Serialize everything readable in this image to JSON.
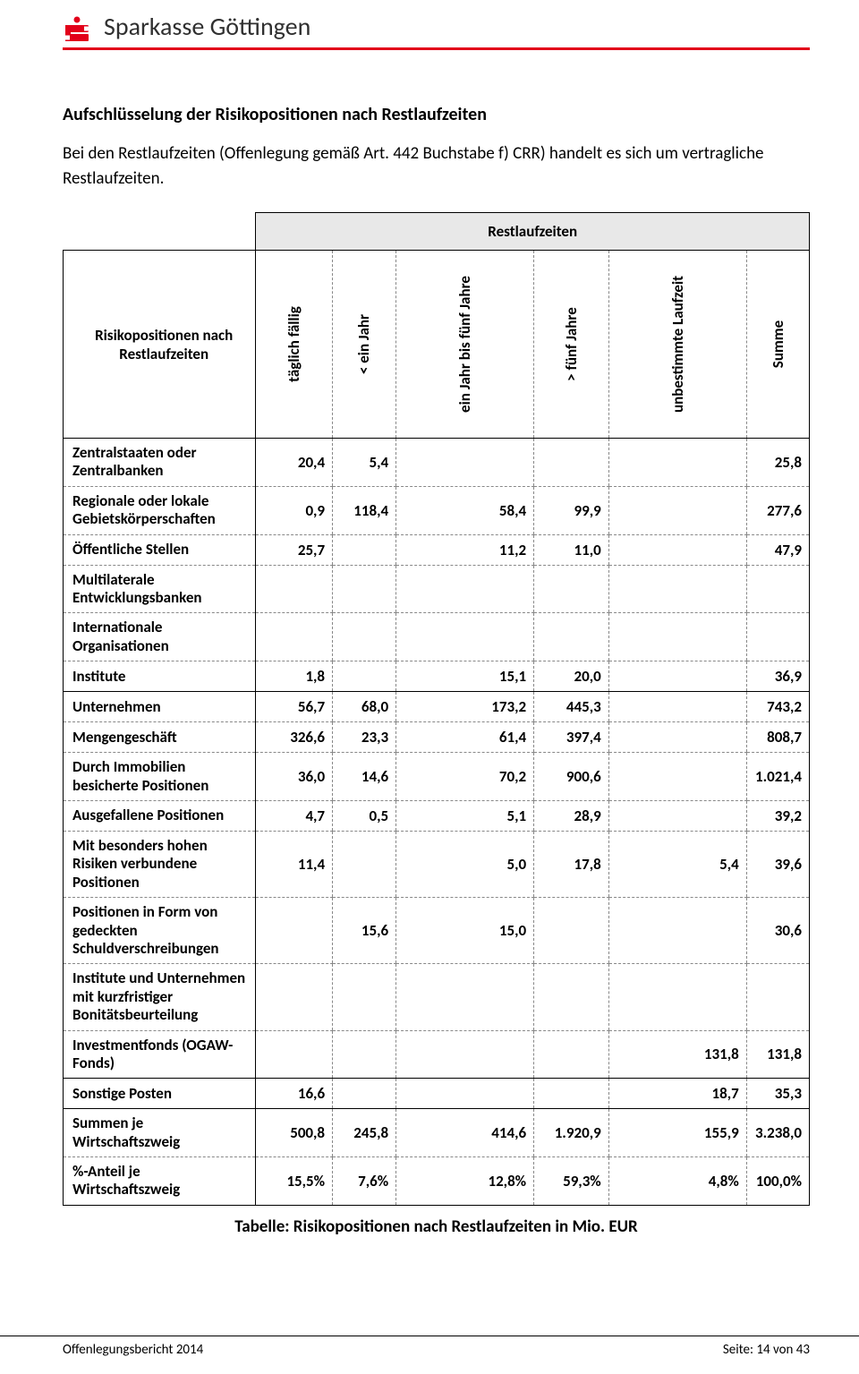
{
  "header": {
    "title": "Sparkasse Göttingen"
  },
  "section": {
    "title": "Aufschlüsselung der Risikopositionen nach Restlaufzeiten",
    "body": "Bei den Restlaufzeiten (Offenlegung gemäß Art. 442 Buchstabe f) CRR) handelt es sich um vertragliche Restlaufzeiten."
  },
  "table": {
    "restlaufzeiten_label": "Restlaufzeiten",
    "rowlabel": "Risikopositionen nach Restlaufzeiten",
    "columns": [
      "täglich fällig",
      "< ein Jahr",
      "ein Jahr bis fünf Jahre",
      "> fünf Jahre",
      "unbestimmte Laufzeit",
      "Summe"
    ],
    "rows": [
      {
        "label": "Zentralstaaten oder Zentralbanken",
        "v": [
          "20,4",
          "5,4",
          "",
          "",
          "",
          "25,8"
        ],
        "style": "dash",
        "top": "solidtop"
      },
      {
        "label": "Regionale oder lokale Gebietskörperschaften",
        "v": [
          "0,9",
          "118,4",
          "58,4",
          "99,9",
          "",
          "277,6"
        ],
        "style": "dash"
      },
      {
        "label": "Öffentliche Stellen",
        "v": [
          "25,7",
          "",
          "11,2",
          "11,0",
          "",
          "47,9"
        ],
        "style": "dash"
      },
      {
        "label": "Multilaterale Entwicklungsbanken",
        "v": [
          "",
          "",
          "",
          "",
          "",
          ""
        ],
        "style": "dash"
      },
      {
        "label": "Internationale Organisationen",
        "v": [
          "",
          "",
          "",
          "",
          "",
          ""
        ],
        "style": "dash"
      },
      {
        "label": "Institute",
        "v": [
          "1,8",
          "",
          "15,1",
          "20,0",
          "",
          "36,9"
        ],
        "style": "solid"
      },
      {
        "label": "Unternehmen",
        "v": [
          "56,7",
          "68,0",
          "173,2",
          "445,3",
          "",
          "743,2"
        ],
        "style": "dash"
      },
      {
        "label": "Mengengeschäft",
        "v": [
          "326,6",
          "23,3",
          "61,4",
          "397,4",
          "",
          "808,7"
        ],
        "style": "dash"
      },
      {
        "label": "Durch Immobilien besicherte Positionen",
        "v": [
          "36,0",
          "14,6",
          "70,2",
          "900,6",
          "",
          "1.021,4"
        ],
        "style": "dash"
      },
      {
        "label": "Ausgefallene Positionen",
        "v": [
          "4,7",
          "0,5",
          "5,1",
          "28,9",
          "",
          "39,2"
        ],
        "style": "dash"
      },
      {
        "label": "Mit besonders hohen Risiken verbundene Positionen",
        "v": [
          "11,4",
          "",
          "5,0",
          "17,8",
          "5,4",
          "39,6"
        ],
        "style": "dash"
      },
      {
        "label": "Positionen in Form von gedeckten Schuldverschreibungen",
        "v": [
          "",
          "15,6",
          "15,0",
          "",
          "",
          "30,6"
        ],
        "style": "dash"
      },
      {
        "label": "Institute und Unternehmen mit kurzfristiger Bonitätsbeurteilung",
        "v": [
          "",
          "",
          "",
          "",
          "",
          ""
        ],
        "style": "dash"
      },
      {
        "label": "Investmentfonds (OGAW-Fonds)",
        "v": [
          "",
          "",
          "",
          "",
          "131,8",
          "131,8"
        ],
        "style": "solid"
      },
      {
        "label": "Sonstige Posten",
        "v": [
          "16,6",
          "",
          "",
          "",
          "18,7",
          "35,3"
        ],
        "style": "solid"
      },
      {
        "label": "Summen je Wirtschaftszweig",
        "v": [
          "500,8",
          "245,8",
          "414,6",
          "1.920,9",
          "155,9",
          "3.238,0"
        ],
        "style": "dash"
      },
      {
        "label": "%-Anteil je Wirtschaftszweig",
        "v": [
          "15,5%",
          "7,6%",
          "12,8%",
          "59,3%",
          "4,8%",
          "100,0%"
        ],
        "style": "solid"
      }
    ],
    "caption": "Tabelle: Risikopositionen nach Restlaufzeiten in Mio. EUR"
  },
  "footer": {
    "left": "Offenlegungsbericht 2014",
    "right": "Seite: 14 von 43"
  }
}
